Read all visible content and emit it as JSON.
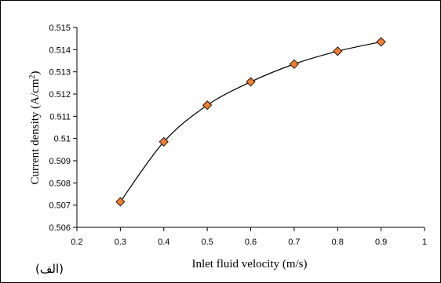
{
  "chart_data": {
    "type": "line",
    "title": "",
    "xlabel": "Inlet fluid velocity (m/s)",
    "ylabel_main": "Current density (A/cm",
    "ylabel_sup": "2",
    "ylabel_close": ")",
    "panel_label": "(الف)",
    "xlim": [
      0.2,
      1.0
    ],
    "ylim": [
      0.506,
      0.515
    ],
    "x_ticks": [
      "0.2",
      "0.3",
      "0.4",
      "0.5",
      "0.6",
      "0.7",
      "0.8",
      "0.9",
      "1"
    ],
    "y_ticks": [
      "0.506",
      "0.507",
      "0.508",
      "0.509",
      "0.51",
      "0.511",
      "0.512",
      "0.513",
      "0.514",
      "0.515"
    ],
    "grid": false,
    "legend": "none",
    "series": [
      {
        "x": [
          0.3,
          0.4,
          0.5,
          0.6,
          0.7,
          0.8,
          0.9
        ],
        "y": [
          0.50715,
          0.50985,
          0.5115,
          0.51255,
          0.51335,
          0.51393,
          0.51435
        ],
        "line_color": "#000000",
        "marker": "diamond",
        "marker_fill": "#ED7D31",
        "marker_edge": "#000000"
      }
    ]
  }
}
